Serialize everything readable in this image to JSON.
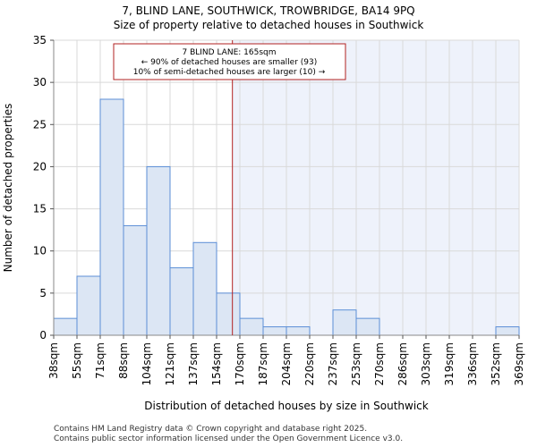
{
  "chart_data": {
    "type": "histogram",
    "title": "7, BLIND LANE, SOUTHWICK, TROWBRIDGE, BA14 9PQ",
    "subtitle": "Size of property relative to detached houses in Southwick",
    "xlabel": "Distribution of detached houses by size in Southwick",
    "ylabel": "Number of detached properties",
    "categories": [
      "38sqm",
      "55sqm",
      "71sqm",
      "88sqm",
      "104sqm",
      "121sqm",
      "137sqm",
      "154sqm",
      "170sqm",
      "187sqm",
      "204sqm",
      "220sqm",
      "237sqm",
      "253sqm",
      "270sqm",
      "286sqm",
      "303sqm",
      "319sqm",
      "336sqm",
      "352sqm",
      "369sqm"
    ],
    "values": [
      2,
      7,
      28,
      13,
      20,
      8,
      11,
      5,
      2,
      1,
      1,
      0,
      3,
      2,
      0,
      0,
      0,
      0,
      0,
      1
    ],
    "ylim": [
      0,
      35
    ],
    "yticks": [
      0,
      5,
      10,
      15,
      20,
      25,
      30,
      35
    ],
    "grid": true,
    "marker": {
      "value_sqm": 165,
      "position_bins": 7.68,
      "line_color": "#b22222"
    },
    "annotation": {
      "line1": "7 BLIND LANE: 165sqm",
      "line2": "← 90% of detached houses are smaller (93)",
      "line3": "10% of semi-detached houses are larger (10) →"
    },
    "colors": {
      "bar_fill": "#dce6f4",
      "bar_stroke": "#5b8ed6",
      "highlight_bg": "#eef2fb",
      "grid": "#d9d9d9"
    }
  },
  "footer": {
    "line1": "Contains HM Land Registry data © Crown copyright and database right 2025.",
    "line2": "Contains public sector information licensed under the Open Government Licence v3.0."
  }
}
